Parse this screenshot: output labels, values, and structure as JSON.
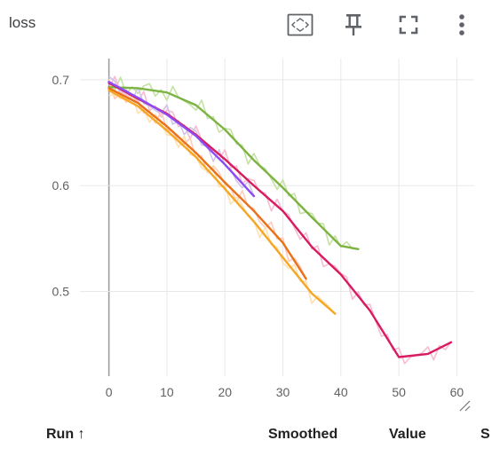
{
  "card": {
    "title": "loss",
    "toolbar": [
      {
        "name": "fit-domain-button",
        "icon": "fit-domain-icon"
      },
      {
        "name": "pin-button",
        "icon": "pin-icon"
      },
      {
        "name": "fullscreen-button",
        "icon": "fullscreen-icon"
      },
      {
        "name": "more-menu-button",
        "icon": "more-vert-icon"
      }
    ]
  },
  "table_header": {
    "run": "Run ↑",
    "smoothed": "Smoothed",
    "value": "Value",
    "step": "S"
  },
  "colors": {
    "grid": "#e8e8e8",
    "zero_axis": "#9e9e9e",
    "tick_text": "#616161"
  },
  "chart_data": {
    "type": "line",
    "title": "",
    "xlabel": "",
    "ylabel": "",
    "xlim": [
      -5,
      63
    ],
    "ylim": [
      0.42,
      0.72
    ],
    "x_ticks": [
      0,
      10,
      20,
      30,
      40,
      50,
      60
    ],
    "y_ticks": [
      0.5,
      0.6,
      0.7
    ],
    "x_tick_labels": [
      "0",
      "10",
      "20",
      "30",
      "40",
      "50",
      "60"
    ],
    "y_tick_labels": [
      "0.5",
      "0.6",
      "0.7"
    ],
    "grid": true,
    "series": [
      {
        "color": "#7cb342",
        "raw_color": "#c5e1a5",
        "x": [
          0,
          5,
          10,
          15,
          20,
          25,
          30,
          35,
          40,
          43
        ],
        "y": [
          0.693,
          0.692,
          0.688,
          0.676,
          0.653,
          0.624,
          0.598,
          0.57,
          0.543,
          0.54
        ]
      },
      {
        "color": "#d81b60",
        "raw_color": "#f8bbd0",
        "x": [
          0,
          5,
          10,
          15,
          20,
          25,
          30,
          35,
          40,
          45,
          50,
          55,
          59
        ],
        "y": [
          0.697,
          0.682,
          0.668,
          0.648,
          0.625,
          0.6,
          0.576,
          0.542,
          0.516,
          0.482,
          0.438,
          0.441,
          0.452
        ]
      },
      {
        "color": "#8c4cf2",
        "raw_color": "#d1c4e9",
        "x": [
          0,
          5,
          10,
          15,
          20,
          25
        ],
        "y": [
          0.698,
          0.683,
          0.667,
          0.647,
          0.62,
          0.59
        ]
      },
      {
        "color": "#e8711a",
        "raw_color": "#ffccbc",
        "x": [
          0,
          5,
          10,
          15,
          20,
          25,
          30,
          34
        ],
        "y": [
          0.692,
          0.678,
          0.656,
          0.631,
          0.603,
          0.576,
          0.546,
          0.512
        ]
      },
      {
        "color": "#f5a623",
        "raw_color": "#ffe0b2",
        "x": [
          0,
          5,
          10,
          15,
          20,
          25,
          30,
          35,
          39
        ],
        "y": [
          0.69,
          0.675,
          0.652,
          0.627,
          0.597,
          0.566,
          0.532,
          0.498,
          0.479
        ]
      }
    ]
  }
}
